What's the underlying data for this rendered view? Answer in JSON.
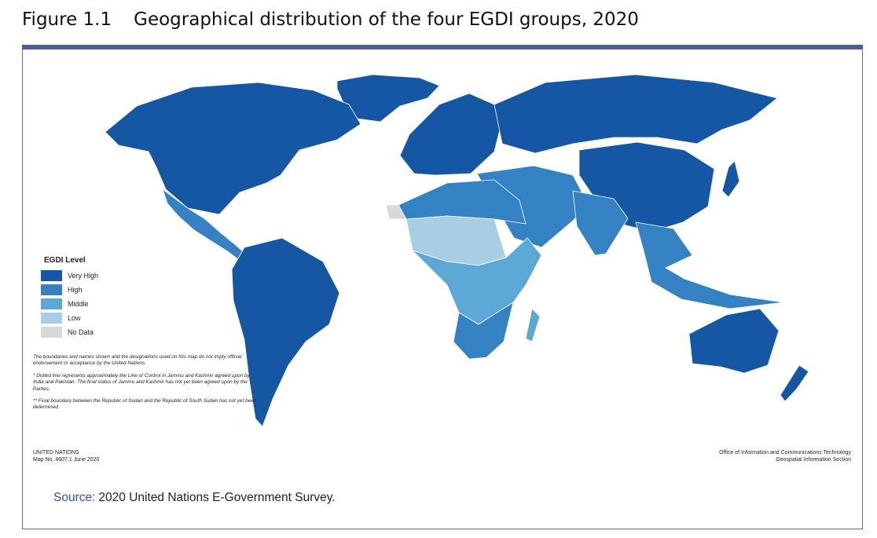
{
  "figure": {
    "number": "Figure 1.1",
    "title": "Geographical distribution of the four EGDI groups, 2020"
  },
  "colors": {
    "very_high": "#1557a2",
    "high": "#3482c3",
    "middle": "#5ba8d6",
    "low": "#a9cde3",
    "no_data": "#d8d8d8",
    "frame": "#4a5c9c",
    "source_label": "#3a4f99"
  },
  "legend": {
    "title": "EGDI Level",
    "items": [
      {
        "label": "Very High",
        "level": "very_high"
      },
      {
        "label": "High",
        "level": "high"
      },
      {
        "label": "Middle",
        "level": "middle"
      },
      {
        "label": "Low",
        "level": "low"
      },
      {
        "label": "No Data",
        "level": "no_data"
      }
    ]
  },
  "notes": {
    "disclaimer": "The boundaries and names shown and the designations used on this map do not imply official endorsement or acceptance by the United Nations.",
    "kashmir": "* Dotted line represents approximately the Line of Control in Jammu and Kashmir agreed upon by India and Pakistan. The final status of Jammu and Kashmir has not yet been agreed upon by the Parties.",
    "sudan": "** Final boundary between the Republic of Sudan and the Republic of South Sudan has not yet been determined."
  },
  "credits": {
    "un_line1": "UNITED NATIONS",
    "un_line2": "Map No. 4607.1  June 2020",
    "oict_line1": "Office of Information and Communications Technology",
    "oict_line2": "Geospatial Information Section"
  },
  "source": {
    "label": "Source:",
    "text": "2020 United Nations E-Government Survey."
  },
  "map_regions": [
    {
      "name": "north-america",
      "level": "very_high"
    },
    {
      "name": "greenland",
      "level": "very_high"
    },
    {
      "name": "mexico-central-america",
      "level": "high"
    },
    {
      "name": "south-america",
      "level": "very_high"
    },
    {
      "name": "europe",
      "level": "very_high"
    },
    {
      "name": "russia",
      "level": "very_high"
    },
    {
      "name": "china",
      "level": "very_high"
    },
    {
      "name": "middle-east",
      "level": "high"
    },
    {
      "name": "india",
      "level": "high"
    },
    {
      "name": "southeast-asia",
      "level": "high"
    },
    {
      "name": "africa-north",
      "level": "high"
    },
    {
      "name": "africa-central",
      "level": "middle"
    },
    {
      "name": "africa-sahel",
      "level": "low"
    },
    {
      "name": "southern-africa",
      "level": "high"
    },
    {
      "name": "australia",
      "level": "very_high"
    },
    {
      "name": "new-zealand",
      "level": "very_high"
    },
    {
      "name": "western-sahara",
      "level": "no_data"
    }
  ]
}
